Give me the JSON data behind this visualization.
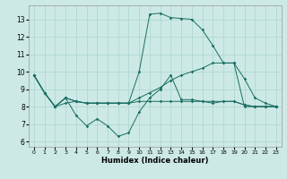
{
  "xlabel": "Humidex (Indice chaleur)",
  "bg_color": "#cce9e5",
  "grid_color": "#aad4cf",
  "line_color": "#1a6e62",
  "xlim": [
    -0.5,
    23.5
  ],
  "ylim": [
    5.7,
    13.8
  ],
  "xticks": [
    0,
    1,
    2,
    3,
    4,
    5,
    6,
    7,
    8,
    9,
    10,
    11,
    12,
    13,
    14,
    15,
    16,
    17,
    18,
    19,
    20,
    21,
    22,
    23
  ],
  "yticks": [
    6,
    7,
    8,
    9,
    10,
    11,
    12,
    13
  ],
  "lines": [
    [
      9.8,
      8.8,
      8.0,
      8.2,
      8.3,
      8.2,
      8.2,
      8.2,
      8.2,
      8.2,
      8.3,
      8.3,
      8.3,
      8.3,
      8.3,
      8.3,
      8.3,
      8.3,
      8.3,
      8.3,
      8.1,
      8.0,
      8.0,
      8.0
    ],
    [
      9.8,
      8.8,
      8.0,
      8.5,
      7.5,
      6.9,
      7.3,
      6.9,
      6.3,
      6.5,
      7.7,
      8.5,
      9.0,
      9.8,
      8.4,
      8.4,
      8.3,
      8.2,
      8.3,
      8.3,
      8.1,
      8.0,
      8.0,
      8.0
    ],
    [
      9.8,
      8.8,
      8.0,
      8.5,
      8.3,
      8.2,
      8.2,
      8.2,
      8.2,
      8.2,
      10.0,
      13.3,
      13.35,
      13.1,
      13.05,
      13.0,
      12.4,
      11.5,
      10.5,
      10.5,
      9.6,
      8.5,
      8.2,
      8.0
    ],
    [
      9.8,
      8.8,
      8.0,
      8.5,
      8.3,
      8.2,
      8.2,
      8.2,
      8.2,
      8.2,
      8.5,
      8.8,
      9.1,
      9.5,
      9.8,
      10.0,
      10.2,
      10.5,
      10.5,
      10.5,
      8.0,
      8.0,
      8.0,
      8.0
    ]
  ]
}
